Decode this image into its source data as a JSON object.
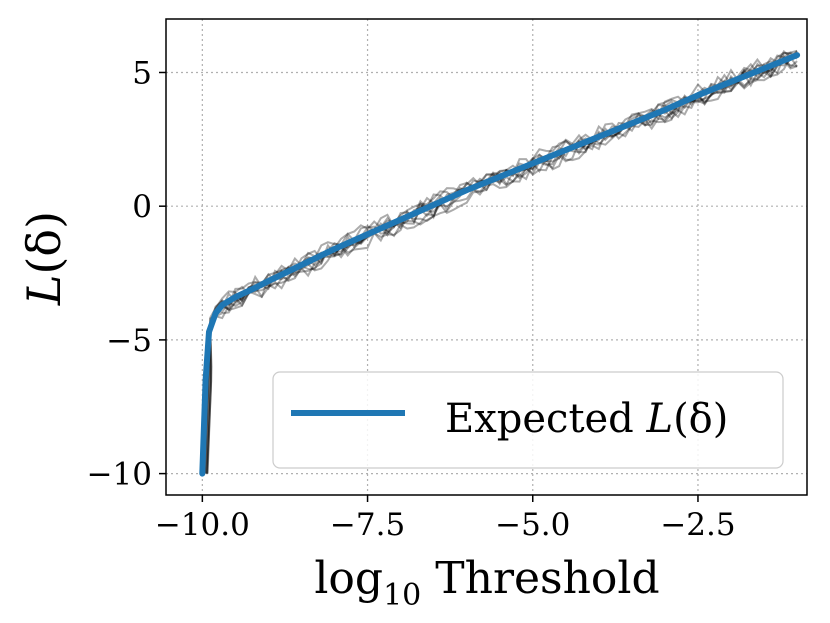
{
  "chart_data": {
    "type": "line",
    "title": "",
    "xlabel": "log10 Threshold",
    "xlabel_parts": {
      "base": "log",
      "subscript": "10",
      "rest": " Threshold"
    },
    "ylabel": "L(δ)",
    "ylabel_parts": {
      "main": "L",
      "rest": "(δ)"
    },
    "xlim": [
      -10.55,
      -0.85
    ],
    "ylim": [
      -10.8,
      7.0
    ],
    "xticks": [
      -10.0,
      -7.5,
      -5.0,
      -2.5
    ],
    "xtick_labels": [
      "−10.0",
      "−7.5",
      "−5.0",
      "−2.5"
    ],
    "yticks": [
      -10,
      -5,
      0,
      5
    ],
    "ytick_labels": [
      "−10",
      "−5",
      "0",
      "5"
    ],
    "grid": true,
    "legend": {
      "position": "lower-right",
      "entries": [
        "Expected L(δ)"
      ],
      "label_main": "Expected ",
      "label_italic": "L",
      "label_rest": "(δ)"
    },
    "colors": {
      "expected": "#1f77b4",
      "samples": "#000000",
      "grid": "#b0b0b0"
    },
    "expected_series": {
      "name": "Expected L(δ)",
      "x": [
        -10.0,
        -9.95,
        -9.9,
        -9.8,
        -9.7,
        -9.5,
        -9.2,
        -9.0,
        -8.5,
        -8.0,
        -7.5,
        -7.0,
        -6.5,
        -6.0,
        -5.5,
        -5.0,
        -4.5,
        -4.0,
        -3.5,
        -3.0,
        -2.5,
        -2.0,
        -1.5,
        -1.0
      ],
      "y": [
        -10.0,
        -6.5,
        -4.7,
        -4.0,
        -3.7,
        -3.4,
        -3.05,
        -2.8,
        -2.2,
        -1.6,
        -1.05,
        -0.5,
        0.05,
        0.6,
        1.1,
        1.6,
        2.1,
        2.6,
        3.1,
        3.6,
        4.15,
        4.65,
        5.15,
        5.65
      ]
    },
    "sample_series_count": 10
  }
}
